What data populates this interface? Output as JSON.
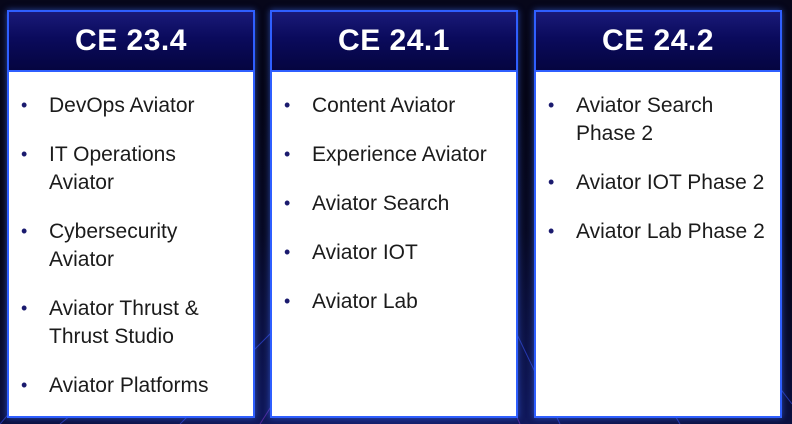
{
  "columns": [
    {
      "title": "CE 23.4",
      "items": [
        "DevOps Aviator",
        "IT Operations Aviator",
        "Cybersecurity Aviator",
        "Aviator Thrust & Thrust Studio",
        "Aviator Platforms"
      ]
    },
    {
      "title": "CE 24.1",
      "items": [
        "Content Aviator",
        "Experience Aviator",
        "Aviator Search",
        "Aviator IOT",
        "Aviator Lab"
      ]
    },
    {
      "title": "CE 24.2",
      "items": [
        "Aviator Search Phase 2",
        "Aviator IOT Phase 2",
        "Aviator Lab Phase 2"
      ]
    }
  ],
  "colors": {
    "header_bg": "#0a0a5c",
    "border": "#2f5fff",
    "bullet": "#1a1a6e"
  },
  "icons": {
    "bullet": "bullet-icon"
  }
}
